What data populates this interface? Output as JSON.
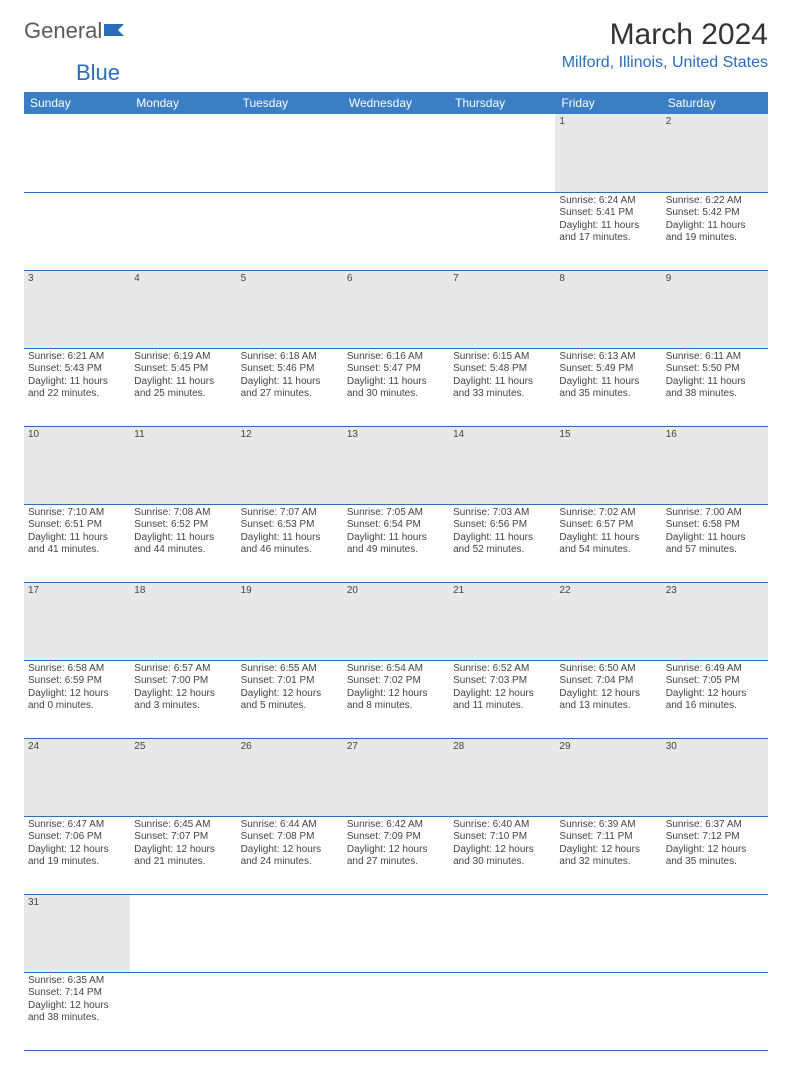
{
  "logo": {
    "text1": "General",
    "text2": "Blue"
  },
  "title": "March 2024",
  "location": "Milford, Illinois, United States",
  "colors": {
    "header_bg": "#3b7ec4",
    "header_text": "#ffffff",
    "accent": "#2a6db8",
    "daynum_bg": "#e8e8e8",
    "body_text": "#444444",
    "page_bg": "#ffffff"
  },
  "weekdays": [
    "Sunday",
    "Monday",
    "Tuesday",
    "Wednesday",
    "Thursday",
    "Friday",
    "Saturday"
  ],
  "weeks": [
    [
      null,
      null,
      null,
      null,
      null,
      {
        "d": "1",
        "sr": "Sunrise: 6:24 AM",
        "ss": "Sunset: 5:41 PM",
        "dl1": "Daylight: 11 hours",
        "dl2": "and 17 minutes."
      },
      {
        "d": "2",
        "sr": "Sunrise: 6:22 AM",
        "ss": "Sunset: 5:42 PM",
        "dl1": "Daylight: 11 hours",
        "dl2": "and 19 minutes."
      }
    ],
    [
      {
        "d": "3",
        "sr": "Sunrise: 6:21 AM",
        "ss": "Sunset: 5:43 PM",
        "dl1": "Daylight: 11 hours",
        "dl2": "and 22 minutes."
      },
      {
        "d": "4",
        "sr": "Sunrise: 6:19 AM",
        "ss": "Sunset: 5:45 PM",
        "dl1": "Daylight: 11 hours",
        "dl2": "and 25 minutes."
      },
      {
        "d": "5",
        "sr": "Sunrise: 6:18 AM",
        "ss": "Sunset: 5:46 PM",
        "dl1": "Daylight: 11 hours",
        "dl2": "and 27 minutes."
      },
      {
        "d": "6",
        "sr": "Sunrise: 6:16 AM",
        "ss": "Sunset: 5:47 PM",
        "dl1": "Daylight: 11 hours",
        "dl2": "and 30 minutes."
      },
      {
        "d": "7",
        "sr": "Sunrise: 6:15 AM",
        "ss": "Sunset: 5:48 PM",
        "dl1": "Daylight: 11 hours",
        "dl2": "and 33 minutes."
      },
      {
        "d": "8",
        "sr": "Sunrise: 6:13 AM",
        "ss": "Sunset: 5:49 PM",
        "dl1": "Daylight: 11 hours",
        "dl2": "and 35 minutes."
      },
      {
        "d": "9",
        "sr": "Sunrise: 6:11 AM",
        "ss": "Sunset: 5:50 PM",
        "dl1": "Daylight: 11 hours",
        "dl2": "and 38 minutes."
      }
    ],
    [
      {
        "d": "10",
        "sr": "Sunrise: 7:10 AM",
        "ss": "Sunset: 6:51 PM",
        "dl1": "Daylight: 11 hours",
        "dl2": "and 41 minutes."
      },
      {
        "d": "11",
        "sr": "Sunrise: 7:08 AM",
        "ss": "Sunset: 6:52 PM",
        "dl1": "Daylight: 11 hours",
        "dl2": "and 44 minutes."
      },
      {
        "d": "12",
        "sr": "Sunrise: 7:07 AM",
        "ss": "Sunset: 6:53 PM",
        "dl1": "Daylight: 11 hours",
        "dl2": "and 46 minutes."
      },
      {
        "d": "13",
        "sr": "Sunrise: 7:05 AM",
        "ss": "Sunset: 6:54 PM",
        "dl1": "Daylight: 11 hours",
        "dl2": "and 49 minutes."
      },
      {
        "d": "14",
        "sr": "Sunrise: 7:03 AM",
        "ss": "Sunset: 6:56 PM",
        "dl1": "Daylight: 11 hours",
        "dl2": "and 52 minutes."
      },
      {
        "d": "15",
        "sr": "Sunrise: 7:02 AM",
        "ss": "Sunset: 6:57 PM",
        "dl1": "Daylight: 11 hours",
        "dl2": "and 54 minutes."
      },
      {
        "d": "16",
        "sr": "Sunrise: 7:00 AM",
        "ss": "Sunset: 6:58 PM",
        "dl1": "Daylight: 11 hours",
        "dl2": "and 57 minutes."
      }
    ],
    [
      {
        "d": "17",
        "sr": "Sunrise: 6:58 AM",
        "ss": "Sunset: 6:59 PM",
        "dl1": "Daylight: 12 hours",
        "dl2": "and 0 minutes."
      },
      {
        "d": "18",
        "sr": "Sunrise: 6:57 AM",
        "ss": "Sunset: 7:00 PM",
        "dl1": "Daylight: 12 hours",
        "dl2": "and 3 minutes."
      },
      {
        "d": "19",
        "sr": "Sunrise: 6:55 AM",
        "ss": "Sunset: 7:01 PM",
        "dl1": "Daylight: 12 hours",
        "dl2": "and 5 minutes."
      },
      {
        "d": "20",
        "sr": "Sunrise: 6:54 AM",
        "ss": "Sunset: 7:02 PM",
        "dl1": "Daylight: 12 hours",
        "dl2": "and 8 minutes."
      },
      {
        "d": "21",
        "sr": "Sunrise: 6:52 AM",
        "ss": "Sunset: 7:03 PM",
        "dl1": "Daylight: 12 hours",
        "dl2": "and 11 minutes."
      },
      {
        "d": "22",
        "sr": "Sunrise: 6:50 AM",
        "ss": "Sunset: 7:04 PM",
        "dl1": "Daylight: 12 hours",
        "dl2": "and 13 minutes."
      },
      {
        "d": "23",
        "sr": "Sunrise: 6:49 AM",
        "ss": "Sunset: 7:05 PM",
        "dl1": "Daylight: 12 hours",
        "dl2": "and 16 minutes."
      }
    ],
    [
      {
        "d": "24",
        "sr": "Sunrise: 6:47 AM",
        "ss": "Sunset: 7:06 PM",
        "dl1": "Daylight: 12 hours",
        "dl2": "and 19 minutes."
      },
      {
        "d": "25",
        "sr": "Sunrise: 6:45 AM",
        "ss": "Sunset: 7:07 PM",
        "dl1": "Daylight: 12 hours",
        "dl2": "and 21 minutes."
      },
      {
        "d": "26",
        "sr": "Sunrise: 6:44 AM",
        "ss": "Sunset: 7:08 PM",
        "dl1": "Daylight: 12 hours",
        "dl2": "and 24 minutes."
      },
      {
        "d": "27",
        "sr": "Sunrise: 6:42 AM",
        "ss": "Sunset: 7:09 PM",
        "dl1": "Daylight: 12 hours",
        "dl2": "and 27 minutes."
      },
      {
        "d": "28",
        "sr": "Sunrise: 6:40 AM",
        "ss": "Sunset: 7:10 PM",
        "dl1": "Daylight: 12 hours",
        "dl2": "and 30 minutes."
      },
      {
        "d": "29",
        "sr": "Sunrise: 6:39 AM",
        "ss": "Sunset: 7:11 PM",
        "dl1": "Daylight: 12 hours",
        "dl2": "and 32 minutes."
      },
      {
        "d": "30",
        "sr": "Sunrise: 6:37 AM",
        "ss": "Sunset: 7:12 PM",
        "dl1": "Daylight: 12 hours",
        "dl2": "and 35 minutes."
      }
    ],
    [
      {
        "d": "31",
        "sr": "Sunrise: 6:35 AM",
        "ss": "Sunset: 7:14 PM",
        "dl1": "Daylight: 12 hours",
        "dl2": "and 38 minutes."
      },
      null,
      null,
      null,
      null,
      null,
      null
    ]
  ]
}
